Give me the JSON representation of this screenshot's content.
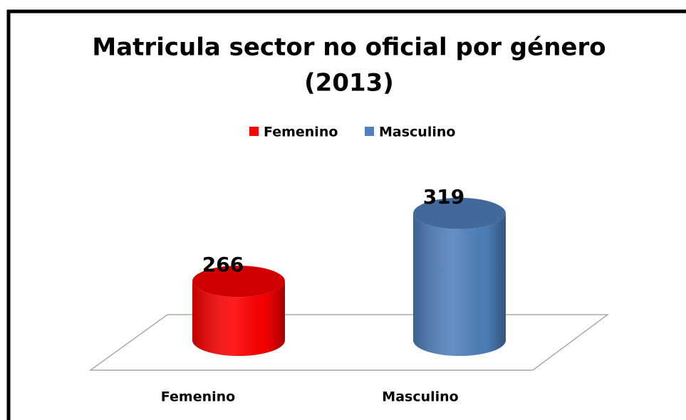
{
  "chart_data": {
    "type": "bar3d",
    "title": "Matricula sector no oficial por género",
    "subtitle": "(2013)",
    "categories": [
      "Femenino",
      "Masculino"
    ],
    "values": [
      266,
      319
    ],
    "colors": [
      "#ff0000",
      "#4f81bd"
    ],
    "ylim": [
      220,
      330
    ]
  }
}
